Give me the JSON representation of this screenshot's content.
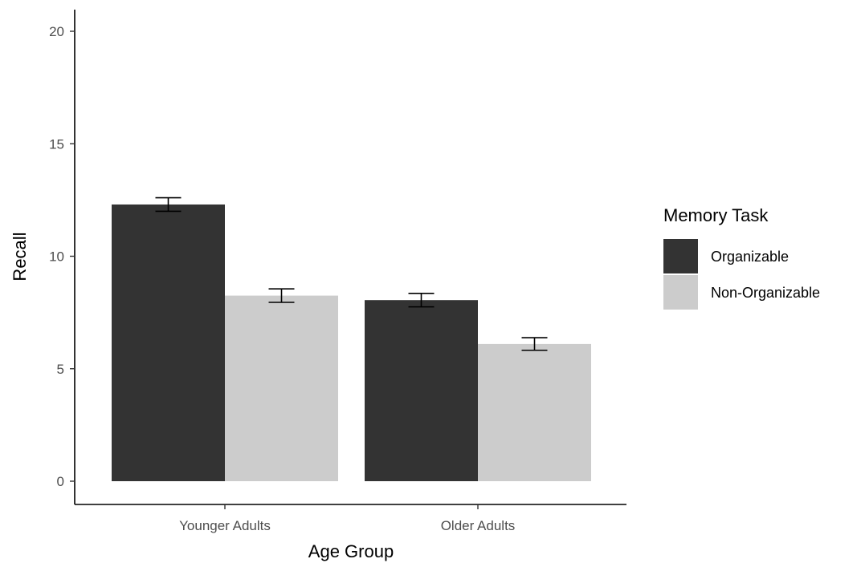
{
  "chart_data": {
    "type": "bar",
    "title": "",
    "xlabel": "Age Group",
    "ylabel": "Recall",
    "categories": [
      "Younger Adults",
      "Older Adults"
    ],
    "ylim": [
      0,
      20
    ],
    "yticks": [
      0,
      5,
      10,
      15,
      20
    ],
    "grid": false,
    "legend_title": "Memory Task",
    "legend_position": "right",
    "series": [
      {
        "name": "Organizable",
        "color": "#333333",
        "values": [
          12.3,
          8.05
        ],
        "error": [
          0.3,
          0.3
        ]
      },
      {
        "name": "Non-Organizable",
        "color": "#cccccc",
        "values": [
          8.25,
          6.1
        ],
        "error": [
          0.3,
          0.28
        ]
      }
    ]
  }
}
